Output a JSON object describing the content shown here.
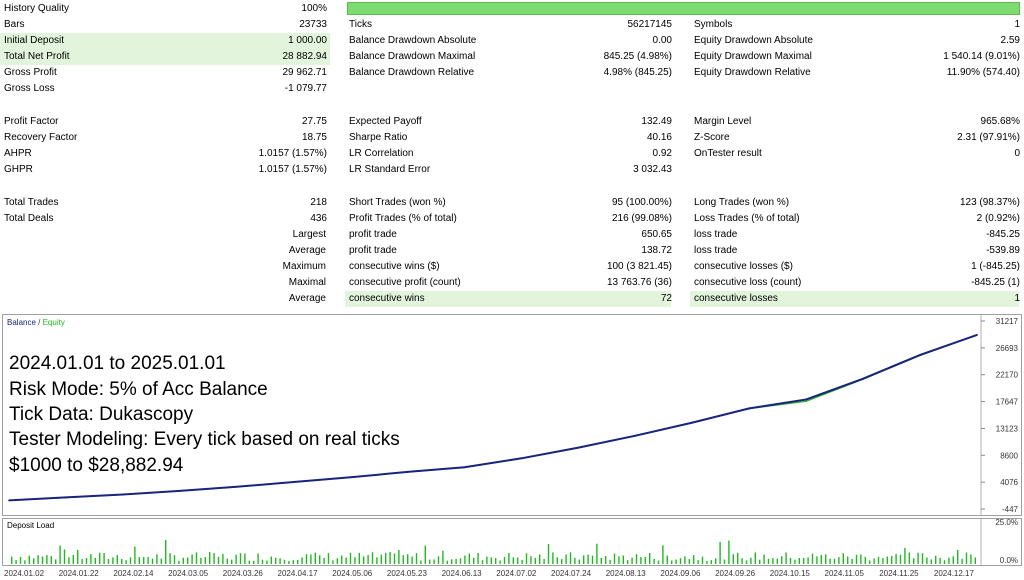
{
  "report": {
    "rows": [
      [
        {
          "label": "History Quality",
          "value": "100%"
        },
        null,
        null
      ],
      [
        {
          "label": "Bars",
          "value": "23733"
        },
        {
          "label": "Ticks",
          "value": "56217145"
        },
        {
          "label": "Symbols",
          "value": "1"
        }
      ],
      [
        {
          "label": "Initial Deposit",
          "value": "1 000.00"
        },
        {
          "label": "Balance Drawdown Absolute",
          "value": "0.00"
        },
        {
          "label": "Equity Drawdown Absolute",
          "value": "2.59"
        }
      ],
      [
        {
          "label": "Total Net Profit",
          "value": "28 882.94"
        },
        {
          "label": "Balance Drawdown Maximal",
          "value": "845.25 (4.98%)"
        },
        {
          "label": "Equity Drawdown Maximal",
          "value": "1 540.14 (9.01%)"
        }
      ],
      [
        {
          "label": "Gross Profit",
          "value": "29 962.71"
        },
        {
          "label": "Balance Drawdown Relative",
          "value": "4.98% (845.25)"
        },
        {
          "label": "Equity Drawdown Relative",
          "value": "11.90% (574.40)"
        }
      ],
      [
        {
          "label": "Gross Loss",
          "value": "-1 079.77"
        },
        null,
        null
      ],
      [
        {
          "label": "Profit Factor",
          "value": "27.75"
        },
        {
          "label": "Expected Payoff",
          "value": "132.49"
        },
        {
          "label": "Margin Level",
          "value": "965.68%"
        }
      ],
      [
        {
          "label": "Recovery Factor",
          "value": "18.75"
        },
        {
          "label": "Sharpe Ratio",
          "value": "40.16"
        },
        {
          "label": "Z-Score",
          "value": "2.31 (97.91%)"
        }
      ],
      [
        {
          "label": "AHPR",
          "value": "1.0157 (1.57%)"
        },
        {
          "label": "LR Correlation",
          "value": "0.92"
        },
        {
          "label": "OnTester result",
          "value": "0"
        }
      ],
      [
        {
          "label": "GHPR",
          "value": "1.0157 (1.57%)"
        },
        {
          "label": "LR Standard Error",
          "value": "3 032.43"
        },
        null
      ],
      [
        {
          "label": "Total Trades",
          "value": "218"
        },
        {
          "label": "Short Trades (won %)",
          "value": "95 (100.00%)"
        },
        {
          "label": "Long Trades (won %)",
          "value": "123 (98.37%)"
        }
      ],
      [
        {
          "label": "Total Deals",
          "value": "436"
        },
        {
          "label": "Profit Trades (% of total)",
          "value": "216 (99.08%)"
        },
        {
          "label": "Loss Trades (% of total)",
          "value": "2 (0.92%)"
        }
      ],
      [
        {
          "label": "Largest",
          "value": ""
        },
        {
          "label": "profit trade",
          "value": "650.65"
        },
        {
          "label": "loss trade",
          "value": "-845.25"
        }
      ],
      [
        {
          "label": "Average",
          "value": ""
        },
        {
          "label": "profit trade",
          "value": "138.72"
        },
        {
          "label": "loss trade",
          "value": "-539.89"
        }
      ],
      [
        {
          "label": "Maximum",
          "value": ""
        },
        {
          "label": "consecutive wins ($)",
          "value": "100 (3 821.45)"
        },
        {
          "label": "consecutive losses ($)",
          "value": "1 (-845.25)"
        }
      ],
      [
        {
          "label": "Maximal",
          "value": ""
        },
        {
          "label": "consecutive profit (count)",
          "value": "13 763.76 (36)"
        },
        {
          "label": "consecutive loss (count)",
          "value": "-845.25 (1)"
        }
      ],
      [
        {
          "label": "Average",
          "value": ""
        },
        {
          "label": "consecutive wins",
          "value": "72"
        },
        {
          "label": "consecutive losses",
          "value": "1"
        }
      ]
    ],
    "history_quality_fill": 1.0,
    "highlight_color": "#e2f4dc"
  },
  "balance_chart": {
    "legend_balance": "Balance",
    "legend_sep": "/",
    "legend_equity": "Equity",
    "balance_color": "#1a237e",
    "equity_color": "#22b822",
    "y_ticks": [
      "31217",
      "26693",
      "22170",
      "17647",
      "13123",
      "8600",
      "4076",
      "-447"
    ],
    "overlay_lines": [
      "2024.01.01 to 2025.01.01",
      "Risk Mode: 5% of Acc Balance",
      "Tick Data: Dukascopy",
      "Tester Modeling: Every tick based on real ticks",
      "$1000 to $28,882.94"
    ]
  },
  "deposit_chart": {
    "title": "Deposit Load",
    "y_ticks": [
      "25.0%",
      "0.0%"
    ],
    "bar_color": "#22b822"
  },
  "chart_data": {
    "type": "line",
    "ylim": [
      -447,
      31217
    ],
    "x": [
      "2024.01.02",
      "2024.01.22",
      "2024.02.14",
      "2024.03.05",
      "2024.03.26",
      "2024.04.17",
      "2024.05.06",
      "2024.05.23",
      "2024.06.13",
      "2024.07.02",
      "2024.07.24",
      "2024.08.13",
      "2024.09.06",
      "2024.09.26",
      "2024.10.15",
      "2024.11.05",
      "2024.11.25",
      "2024.12.17"
    ],
    "series": [
      {
        "name": "Balance",
        "values": [
          1000,
          1500,
          2000,
          2600,
          3300,
          4100,
          4900,
          5800,
          6600,
          8100,
          9900,
          11900,
          14100,
          16500,
          18000,
          21500,
          25500,
          28883
        ]
      },
      {
        "name": "Equity",
        "values": [
          1000,
          1480,
          1980,
          2580,
          3280,
          4080,
          4880,
          5780,
          6550,
          8050,
          9850,
          11850,
          14050,
          16450,
          17700,
          21400,
          25400,
          28883
        ]
      }
    ]
  },
  "date_labels": [
    "2024.01.02",
    "2024.01.22",
    "2024.02.14",
    "2024.03.05",
    "2024.03.26",
    "2024.04.17",
    "2024.05.06",
    "2024.05.23",
    "2024.06.13",
    "2024.07.02",
    "2024.07.24",
    "2024.08.13",
    "2024.09.06",
    "2024.09.26",
    "2024.10.15",
    "2024.11.05",
    "2024.11.25",
    "2024.12.17"
  ]
}
